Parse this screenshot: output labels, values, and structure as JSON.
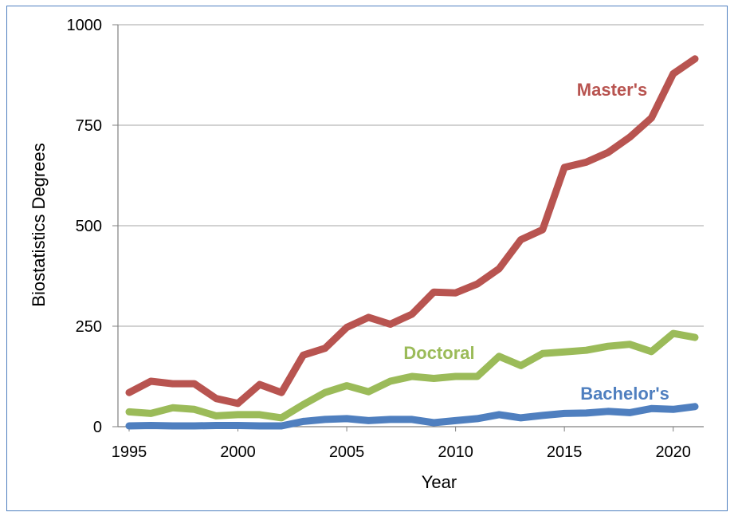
{
  "chart_data": {
    "type": "line",
    "title": "",
    "xlabel": "Year",
    "ylabel": "Biostatistics Degrees",
    "xlim": [
      1995,
      2021
    ],
    "ylim": [
      0,
      1000
    ],
    "x_ticks": [
      "1995",
      "2000",
      "2005",
      "2010",
      "2015",
      "2020"
    ],
    "y_ticks": [
      "0",
      "250",
      "500",
      "750",
      "1000"
    ],
    "grid": "horizontal",
    "legend": "inline labels",
    "x": [
      1995,
      1996,
      1997,
      1998,
      1999,
      2000,
      2001,
      2002,
      2003,
      2004,
      2005,
      2006,
      2007,
      2008,
      2009,
      2010,
      2011,
      2012,
      2013,
      2014,
      2015,
      2016,
      2017,
      2018,
      2019,
      2020,
      2021
    ],
    "series": [
      {
        "name": "Master's",
        "color": "#b85450",
        "values": [
          85,
          113,
          107,
          107,
          70,
          58,
          105,
          85,
          178,
          195,
          247,
          272,
          255,
          280,
          335,
          333,
          355,
          393,
          465,
          490,
          645,
          658,
          682,
          720,
          768,
          878,
          915
        ]
      },
      {
        "name": "Doctoral",
        "color": "#9bbb59",
        "values": [
          37,
          33,
          47,
          43,
          27,
          30,
          30,
          22,
          55,
          85,
          102,
          87,
          113,
          125,
          120,
          125,
          125,
          175,
          152,
          182,
          186,
          190,
          200,
          205,
          187,
          232,
          222
        ]
      },
      {
        "name": "Bachelor's",
        "color": "#4f7fbf",
        "values": [
          2,
          3,
          2,
          2,
          3,
          3,
          2,
          2,
          13,
          18,
          20,
          15,
          18,
          18,
          10,
          15,
          20,
          30,
          22,
          28,
          33,
          34,
          38,
          35,
          45,
          43,
          50
        ]
      }
    ]
  }
}
